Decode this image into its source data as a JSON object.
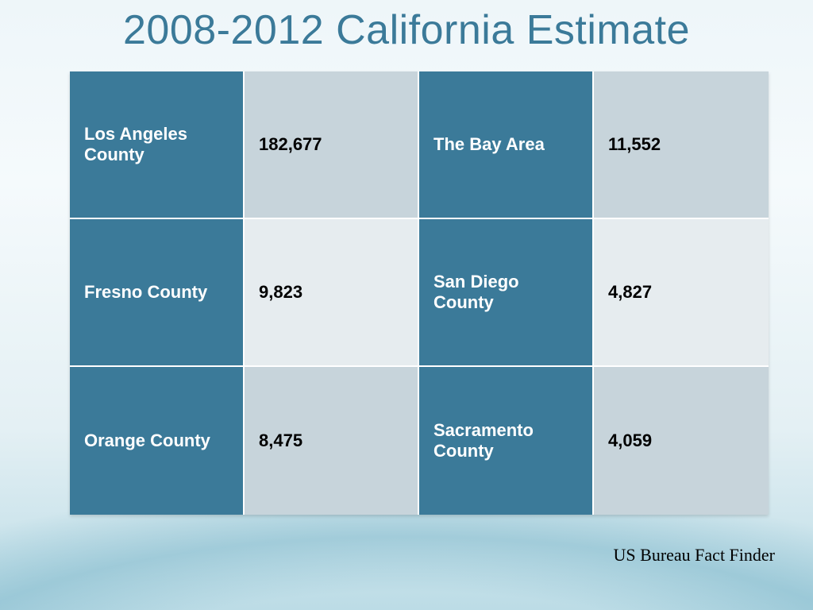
{
  "title": "2008-2012 California Estimate",
  "title_color": "#3b7a99",
  "footer": "US Bureau Fact Finder",
  "table": {
    "rows": 3,
    "cols": 4,
    "cell_border_color": "#ffffff",
    "name_cell_bg": "#3b7a99",
    "name_cell_fg": "#ffffff",
    "value_cell_fg": "#000000",
    "value_bg_a": "#c7d4db",
    "value_bg_b": "#e6ecef",
    "label_fontsize": 22,
    "label_fontweight": 700,
    "data": [
      {
        "name": "Los Angeles County",
        "value": "182,677"
      },
      {
        "name": "The Bay Area",
        "value": "11,552"
      },
      {
        "name": "Fresno County",
        "value": "9,823"
      },
      {
        "name": "San Diego County",
        "value": "4,827"
      },
      {
        "name": "Orange County",
        "value": "8,475"
      },
      {
        "name": "Sacramento County",
        "value": "4,059"
      }
    ],
    "value_bg_pattern": [
      "a",
      "a",
      "b",
      "b",
      "a",
      "a"
    ]
  }
}
